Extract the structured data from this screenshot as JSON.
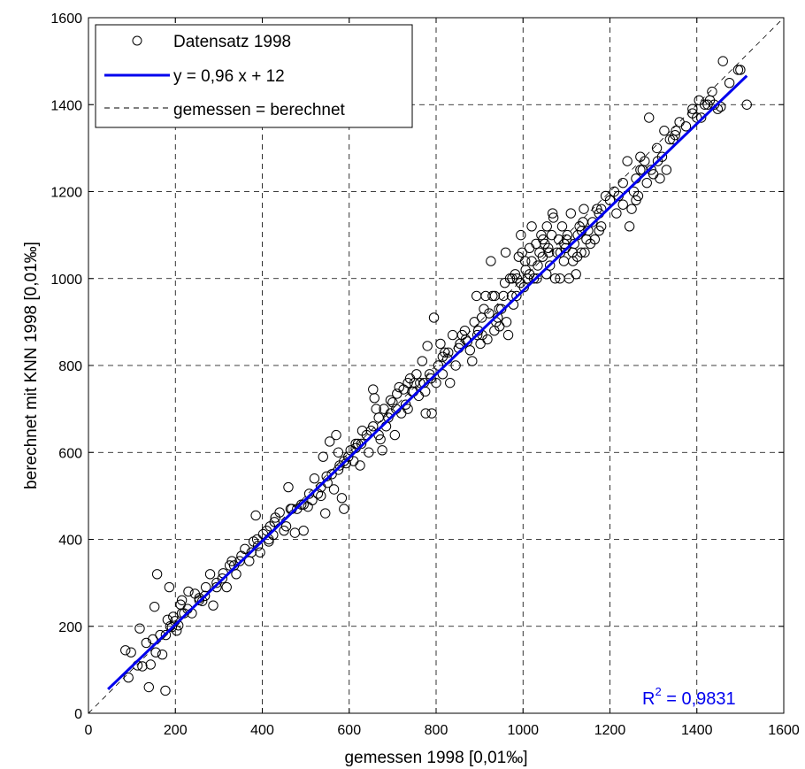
{
  "chart_data": {
    "type": "scatter",
    "xlabel": "gemessen 1998 [0,01‰]",
    "ylabel": "berechnet mit KNN 1998 [0,01‰]",
    "xlim": [
      0,
      1600
    ],
    "ylim": [
      0,
      1600
    ],
    "xticks": [
      0,
      200,
      400,
      600,
      800,
      1000,
      1200,
      1400,
      1600
    ],
    "yticks": [
      0,
      200,
      400,
      600,
      800,
      1000,
      1200,
      1400,
      1600
    ],
    "grid": true,
    "legend_position": "top-left",
    "legend": {
      "scatter_label": "Datensatz 1998",
      "fit_label": "y = 0,96 x + 12",
      "identity_label": "gemessen = berechnet"
    },
    "fit_line": {
      "slope": 0.96,
      "intercept": 12,
      "x_range": [
        45,
        1515
      ],
      "color": "#0000ee"
    },
    "identity_line": {
      "x_range": [
        0,
        1600
      ]
    },
    "annotation": {
      "r2_prefix": "R",
      "r2_exponent": "2",
      "r2_value": " = 0,9831",
      "color": "#0000ee"
    },
    "series": [
      {
        "name": "Datensatz 1998",
        "points": [
          [
            85,
            145
          ],
          [
            92,
            82
          ],
          [
            98,
            140
          ],
          [
            113,
            110
          ],
          [
            118,
            195
          ],
          [
            124,
            108
          ],
          [
            133,
            162
          ],
          [
            139,
            60
          ],
          [
            143,
            112
          ],
          [
            148,
            170
          ],
          [
            152,
            245
          ],
          [
            155,
            140
          ],
          [
            158,
            320
          ],
          [
            165,
            180
          ],
          [
            170,
            135
          ],
          [
            177,
            52
          ],
          [
            182,
            215
          ],
          [
            186,
            290
          ],
          [
            192,
            198
          ],
          [
            195,
            222
          ],
          [
            199,
            212
          ],
          [
            203,
            190
          ],
          [
            207,
            202
          ],
          [
            212,
            250
          ],
          [
            215,
            260
          ],
          [
            220,
            230
          ],
          [
            230,
            280
          ],
          [
            238,
            230
          ],
          [
            245,
            275
          ],
          [
            255,
            265
          ],
          [
            262,
            258
          ],
          [
            270,
            290
          ],
          [
            280,
            320
          ],
          [
            287,
            248
          ],
          [
            295,
            300
          ],
          [
            310,
            322
          ],
          [
            318,
            290
          ],
          [
            325,
            340
          ],
          [
            330,
            350
          ],
          [
            340,
            320
          ],
          [
            352,
            362
          ],
          [
            360,
            378
          ],
          [
            370,
            350
          ],
          [
            380,
            395
          ],
          [
            385,
            455
          ],
          [
            390,
            385
          ],
          [
            395,
            370
          ],
          [
            402,
            412
          ],
          [
            410,
            420
          ],
          [
            415,
            395
          ],
          [
            418,
            430
          ],
          [
            425,
            410
          ],
          [
            430,
            450
          ],
          [
            440,
            462
          ],
          [
            450,
            420
          ],
          [
            460,
            520
          ],
          [
            465,
            470
          ],
          [
            475,
            415
          ],
          [
            480,
            470
          ],
          [
            490,
            480
          ],
          [
            495,
            420
          ],
          [
            505,
            475
          ],
          [
            515,
            490
          ],
          [
            520,
            540
          ],
          [
            528,
            505
          ],
          [
            535,
            500
          ],
          [
            540,
            590
          ],
          [
            545,
            460
          ],
          [
            550,
            530
          ],
          [
            555,
            625
          ],
          [
            560,
            550
          ],
          [
            565,
            515
          ],
          [
            570,
            640
          ],
          [
            575,
            600
          ],
          [
            578,
            570
          ],
          [
            583,
            495
          ],
          [
            588,
            470
          ],
          [
            593,
            575
          ],
          [
            598,
            590
          ],
          [
            603,
            605
          ],
          [
            610,
            580
          ],
          [
            615,
            620
          ],
          [
            620,
            620
          ],
          [
            625,
            570
          ],
          [
            630,
            650
          ],
          [
            640,
            640
          ],
          [
            645,
            600
          ],
          [
            650,
            650
          ],
          [
            655,
            745
          ],
          [
            658,
            725
          ],
          [
            662,
            700
          ],
          [
            668,
            640
          ],
          [
            672,
            630
          ],
          [
            676,
            605
          ],
          [
            680,
            700
          ],
          [
            685,
            660
          ],
          [
            690,
            680
          ],
          [
            695,
            720
          ],
          [
            700,
            715
          ],
          [
            705,
            640
          ],
          [
            710,
            735
          ],
          [
            715,
            750
          ],
          [
            720,
            690
          ],
          [
            725,
            745
          ],
          [
            730,
            710
          ],
          [
            735,
            760
          ],
          [
            740,
            770
          ],
          [
            745,
            740
          ],
          [
            750,
            760
          ],
          [
            755,
            780
          ],
          [
            760,
            730
          ],
          [
            763,
            760
          ],
          [
            768,
            810
          ],
          [
            772,
            760
          ],
          [
            776,
            690
          ],
          [
            780,
            845
          ],
          [
            785,
            780
          ],
          [
            790,
            690
          ],
          [
            795,
            910
          ],
          [
            800,
            760
          ],
          [
            805,
            800
          ],
          [
            810,
            850
          ],
          [
            815,
            780
          ],
          [
            820,
            830
          ],
          [
            826,
            815
          ],
          [
            832,
            760
          ],
          [
            838,
            870
          ],
          [
            845,
            800
          ],
          [
            852,
            840
          ],
          [
            860,
            870
          ],
          [
            866,
            880
          ],
          [
            872,
            855
          ],
          [
            878,
            835
          ],
          [
            883,
            810
          ],
          [
            888,
            900
          ],
          [
            893,
            960
          ],
          [
            897,
            880
          ],
          [
            902,
            850
          ],
          [
            906,
            870
          ],
          [
            910,
            930
          ],
          [
            914,
            960
          ],
          [
            918,
            860
          ],
          [
            922,
            920
          ],
          [
            926,
            1040
          ],
          [
            930,
            960
          ],
          [
            934,
            880
          ],
          [
            938,
            900
          ],
          [
            942,
            910
          ],
          [
            946,
            890
          ],
          [
            950,
            930
          ],
          [
            955,
            960
          ],
          [
            958,
            990
          ],
          [
            962,
            900
          ],
          [
            966,
            870
          ],
          [
            970,
            1000
          ],
          [
            974,
            960
          ],
          [
            978,
            940
          ],
          [
            982,
            1010
          ],
          [
            986,
            1000
          ],
          [
            990,
            1050
          ],
          [
            994,
            990
          ],
          [
            998,
            1060
          ],
          [
            1002,
            980
          ],
          [
            1006,
            1020
          ],
          [
            1010,
            1000
          ],
          [
            1015,
            1070
          ],
          [
            1020,
            1040
          ],
          [
            1025,
            1000
          ],
          [
            1030,
            1080
          ],
          [
            1034,
            1030
          ],
          [
            1038,
            1060
          ],
          [
            1042,
            1100
          ],
          [
            1046,
            1090
          ],
          [
            1050,
            1080
          ],
          [
            1054,
            1010
          ],
          [
            1058,
            1070
          ],
          [
            1062,
            1030
          ],
          [
            1066,
            1100
          ],
          [
            1070,
            1140
          ],
          [
            1074,
            1000
          ],
          [
            1078,
            1060
          ],
          [
            1082,
            1090
          ],
          [
            1086,
            1060
          ],
          [
            1090,
            1120
          ],
          [
            1094,
            1040
          ],
          [
            1098,
            1070
          ],
          [
            1102,
            1100
          ],
          [
            1106,
            1000
          ],
          [
            1110,
            1150
          ],
          [
            1114,
            1060
          ],
          [
            1118,
            1080
          ],
          [
            1122,
            1010
          ],
          [
            1126,
            1100
          ],
          [
            1130,
            1120
          ],
          [
            1134,
            1060
          ],
          [
            1138,
            1130
          ],
          [
            1142,
            1060
          ],
          [
            1146,
            1090
          ],
          [
            1150,
            1110
          ],
          [
            1155,
            1080
          ],
          [
            1160,
            1130
          ],
          [
            1165,
            1090
          ],
          [
            1170,
            1160
          ],
          [
            1175,
            1150
          ],
          [
            1180,
            1160
          ],
          [
            1190,
            1190
          ],
          [
            1200,
            1180
          ],
          [
            1210,
            1200
          ],
          [
            1220,
            1190
          ],
          [
            1230,
            1170
          ],
          [
            1240,
            1270
          ],
          [
            1245,
            1120
          ],
          [
            1250,
            1160
          ],
          [
            1255,
            1200
          ],
          [
            1260,
            1230
          ],
          [
            1265,
            1190
          ],
          [
            1270,
            1280
          ],
          [
            1275,
            1250
          ],
          [
            1280,
            1270
          ],
          [
            1285,
            1220
          ],
          [
            1290,
            1370
          ],
          [
            1295,
            1250
          ],
          [
            1300,
            1240
          ],
          [
            1308,
            1300
          ],
          [
            1315,
            1230
          ],
          [
            1320,
            1280
          ],
          [
            1325,
            1340
          ],
          [
            1330,
            1250
          ],
          [
            1338,
            1320
          ],
          [
            1345,
            1320
          ],
          [
            1352,
            1340
          ],
          [
            1360,
            1360
          ],
          [
            1375,
            1350
          ],
          [
            1390,
            1380
          ],
          [
            1400,
            1370
          ],
          [
            1405,
            1410
          ],
          [
            1410,
            1370
          ],
          [
            1418,
            1400
          ],
          [
            1425,
            1400
          ],
          [
            1430,
            1410
          ],
          [
            1435,
            1430
          ],
          [
            1440,
            1400
          ],
          [
            1448,
            1390
          ],
          [
            1455,
            1395
          ],
          [
            1460,
            1500
          ],
          [
            1475,
            1450
          ],
          [
            1495,
            1480
          ],
          [
            1500,
            1480
          ],
          [
            1515,
            1400
          ],
          [
            995,
            1100
          ],
          [
            1005,
            1040
          ],
          [
            1045,
            1050
          ],
          [
            1085,
            1000
          ],
          [
            1115,
            1040
          ],
          [
            1068,
            1150
          ],
          [
            960,
            1060
          ],
          [
            1020,
            1120
          ],
          [
            1140,
            1160
          ],
          [
            1100,
            1090
          ],
          [
            1125,
            1050
          ],
          [
            1055,
            1120
          ],
          [
            1015,
            1010
          ],
          [
            975,
            1000
          ],
          [
            935,
            960
          ],
          [
            895,
            870
          ],
          [
            855,
            850
          ],
          [
            815,
            820
          ],
          [
            775,
            740
          ],
          [
            735,
            700
          ],
          [
            695,
            690
          ],
          [
            655,
            660
          ],
          [
            615,
            610
          ],
          [
            575,
            560
          ],
          [
            535,
            520
          ],
          [
            495,
            480
          ],
          [
            455,
            430
          ],
          [
            415,
            400
          ],
          [
            375,
            370
          ],
          [
            335,
            340
          ],
          [
            295,
            290
          ],
          [
            255,
            260
          ],
          [
            215,
            230
          ],
          [
            178,
            180
          ],
          [
            1180,
            1120
          ],
          [
            1230,
            1220
          ],
          [
            1270,
            1250
          ],
          [
            1310,
            1270
          ],
          [
            1350,
            1330
          ],
          [
            1390,
            1390
          ],
          [
            1260,
            1180
          ],
          [
            1215,
            1150
          ],
          [
            1175,
            1110
          ],
          [
            1135,
            1110
          ],
          [
            1095,
            1080
          ],
          [
            1060,
            1060
          ],
          [
            1032,
            1000
          ],
          [
            985,
            960
          ],
          [
            945,
            930
          ],
          [
            905,
            910
          ],
          [
            868,
            860
          ],
          [
            828,
            830
          ],
          [
            788,
            770
          ],
          [
            748,
            740
          ],
          [
            708,
            700
          ],
          [
            668,
            680
          ],
          [
            628,
            620
          ],
          [
            588,
            580
          ],
          [
            548,
            545
          ],
          [
            508,
            505
          ],
          [
            468,
            470
          ],
          [
            428,
            440
          ],
          [
            388,
            400
          ],
          [
            348,
            350
          ],
          [
            308,
            310
          ],
          [
            268,
            270
          ],
          [
            228,
            240
          ],
          [
            188,
            200
          ]
        ]
      }
    ]
  }
}
